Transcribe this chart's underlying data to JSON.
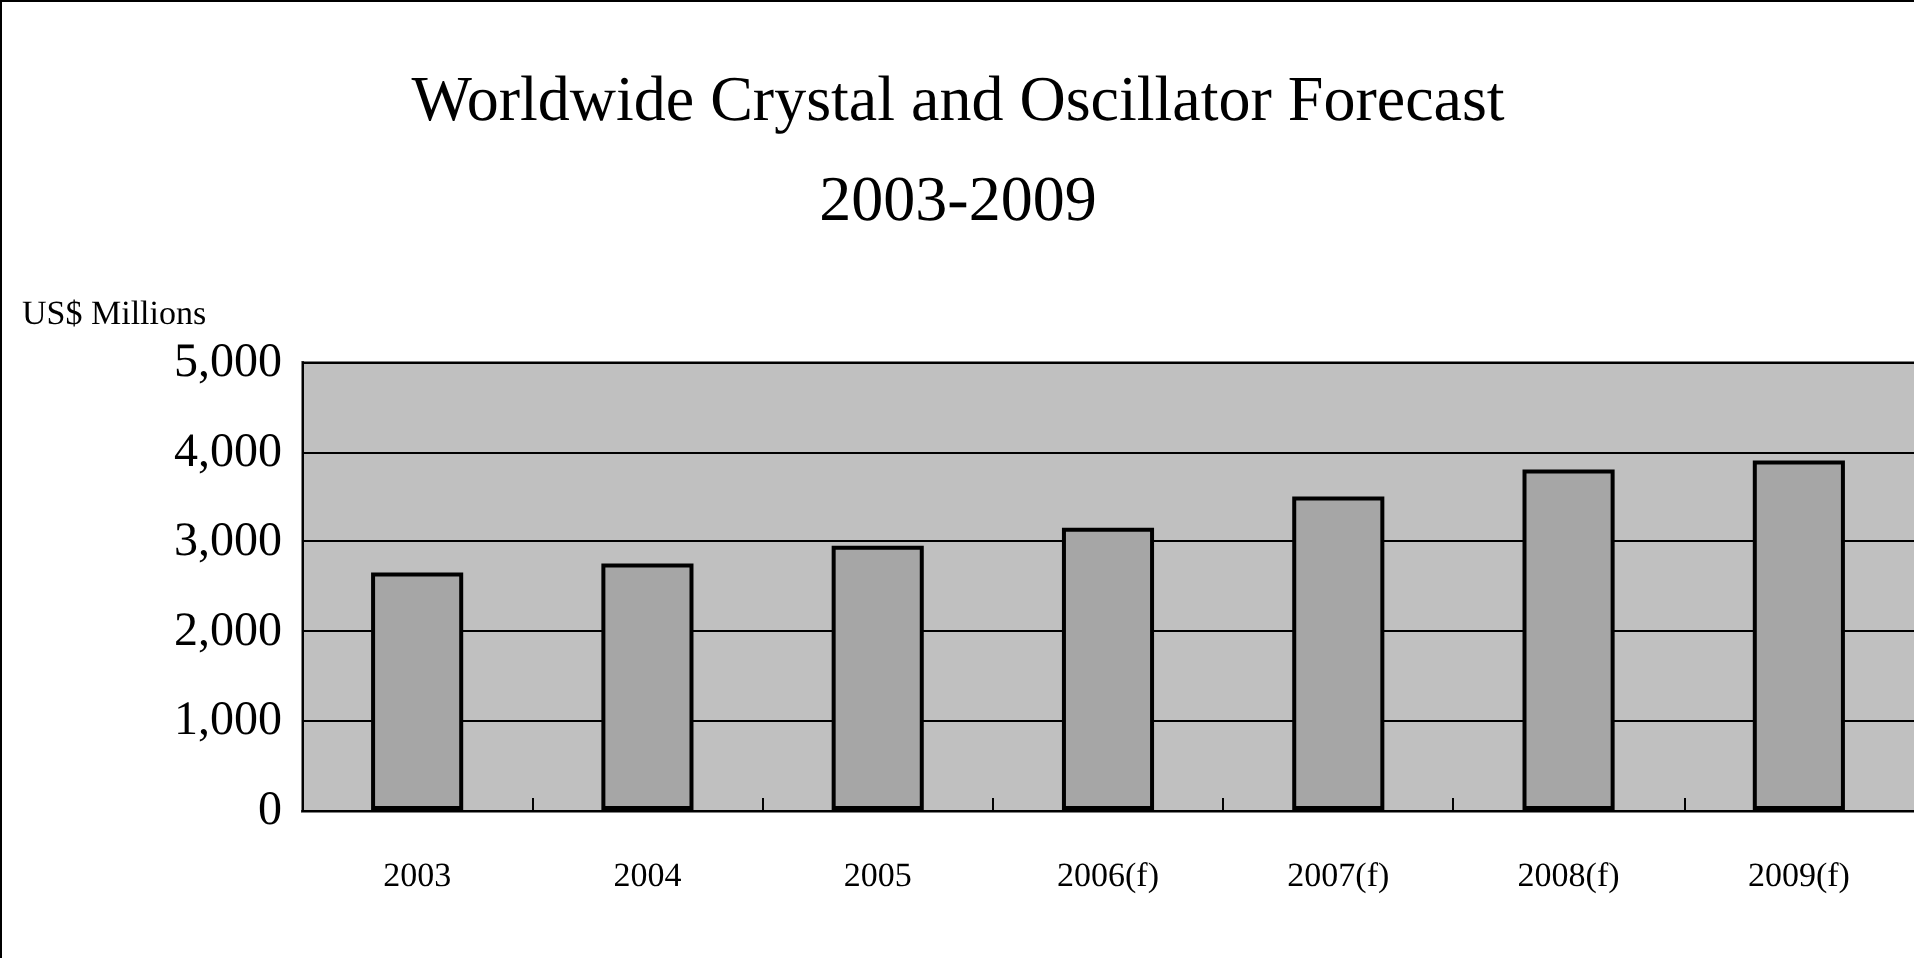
{
  "chart_data": {
    "type": "bar",
    "title": "Worldwide Crystal and Oscillator Forecast\n2003-2009",
    "ylabel": "US$ Millions",
    "categories": [
      "2003",
      "2004",
      "2005",
      "2006(f)",
      "2007(f)",
      "2008(f)",
      "2009(f)"
    ],
    "values": [
      2650,
      2750,
      2950,
      3150,
      3500,
      3800,
      3900
    ],
    "color": "#a6a6a6",
    "ylim": [
      0,
      5000
    ],
    "yticks": [
      0,
      {
        "value": 1000,
        "label": "1,000"
      },
      {
        "value": 2000,
        "label": "2,000"
      },
      {
        "value": 3000,
        "label": "3,000"
      },
      {
        "value": 4000,
        "label": "4,000"
      },
      {
        "value": 5000,
        "label": "5,000"
      }
    ],
    "grid": "y"
  }
}
